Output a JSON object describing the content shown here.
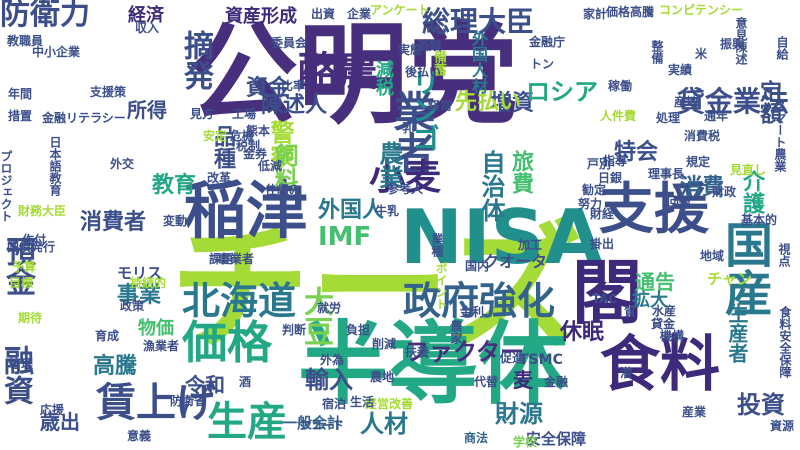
{
  "palette": {
    "dark_purple": "#3e2a7a",
    "purple": "#472f7d",
    "indigo": "#3c4f8a",
    "blue": "#33628d",
    "teal_blue": "#2a788e",
    "teal": "#21908d",
    "green_teal": "#22a884",
    "green": "#44bf70",
    "light_green": "#7ad151",
    "lime": "#a5db36",
    "yellow_green": "#c8e020"
  },
  "words": [
    {
      "text": "公明党",
      "color": "#472f7d"
    },
    {
      "text": "チーズ",
      "color": "#a5db36"
    },
    {
      "text": "半導体",
      "color": "#22a884"
    },
    {
      "text": "NISA",
      "color": "#21908d"
    },
    {
      "text": "閣",
      "color": "#3e2a7a"
    },
    {
      "text": "稲津",
      "color": "#3c4f8a"
    },
    {
      "text": "支援",
      "color": "#3c4f8a"
    },
    {
      "text": "食料",
      "color": "#3e2a7a"
    },
    {
      "text": "政府強化",
      "color": "#33628d"
    },
    {
      "text": "価格",
      "color": "#22a884"
    },
    {
      "text": "賃上げ",
      "color": "#3c4f8a"
    },
    {
      "text": "生産",
      "color": "#22a884"
    },
    {
      "text": "北海道",
      "color": "#2a788e"
    },
    {
      "text": "国産",
      "color": "#2a788e"
    },
    {
      "text": "業者",
      "color": "#3c4f8a"
    },
    {
      "text": "酪農",
      "color": "#472f7d"
    },
    {
      "text": "小麦",
      "color": "#3e2a7a"
    },
    {
      "text": "防衛力",
      "color": "#3c4f8a"
    },
    {
      "text": "総理大臣",
      "color": "#3c4f8a"
    },
    {
      "text": "摘発",
      "color": "#3c4f8a"
    },
    {
      "text": "リンゴ",
      "color": "#21908d"
    },
    {
      "text": "貸金業法",
      "color": "#3c4f8a"
    },
    {
      "text": "ファクター",
      "color": "#472f7d"
    },
    {
      "text": "IMF",
      "color": "#44bf70"
    },
    {
      "text": "大豆",
      "color": "#7ad151"
    },
    {
      "text": "輸入",
      "color": "#3c4f8a"
    },
    {
      "text": "投資",
      "color": "#3c4f8a"
    },
    {
      "text": "預金",
      "color": "#3c4f8a"
    },
    {
      "text": "融資",
      "color": "#3c4f8a"
    },
    {
      "text": "高騰",
      "color": "#2a788e"
    },
    {
      "text": "事業",
      "color": "#2a788e"
    },
    {
      "text": "消費者",
      "color": "#3c4f8a"
    },
    {
      "text": "外国人",
      "color": "#2a788e"
    },
    {
      "text": "増資",
      "color": "#3c4f8a"
    },
    {
      "text": "ロシア",
      "color": "#22a884"
    },
    {
      "text": "先払い",
      "color": "#a5db36"
    },
    {
      "text": "資金",
      "color": "#3c4f8a"
    },
    {
      "text": "減税",
      "color": "#22a884"
    },
    {
      "text": "農業",
      "color": "#2a788e"
    },
    {
      "text": "自治体",
      "color": "#2a788e"
    },
    {
      "text": "旅費",
      "color": "#44bf70"
    },
    {
      "text": "特会",
      "color": "#3c4f8a"
    },
    {
      "text": "介護",
      "color": "#22a884"
    },
    {
      "text": "消費",
      "color": "#33628d"
    },
    {
      "text": "定額",
      "color": "#3c4f8a"
    },
    {
      "text": "財源",
      "color": "#2a788e"
    },
    {
      "text": "人材",
      "color": "#2a788e"
    },
    {
      "text": "歳出",
      "color": "#3c4f8a"
    },
    {
      "text": "令和",
      "color": "#3c4f8a"
    },
    {
      "text": "教育",
      "color": "#22a884"
    },
    {
      "text": "経済",
      "color": "#3e2a7a"
    },
    {
      "text": "資産形成",
      "color": "#3e2a7a"
    },
    {
      "text": "警察",
      "color": "#a5db36"
    },
    {
      "text": "飼料",
      "color": "#7ad151"
    },
    {
      "text": "品種",
      "color": "#3c4f8a"
    },
    {
      "text": "陳述人",
      "color": "#3c4f8a"
    },
    {
      "text": "所得",
      "color": "#3c4f8a"
    },
    {
      "text": "休眠",
      "color": "#3e2a7a"
    },
    {
      "text": "通告",
      "color": "#44bf70"
    },
    {
      "text": "拡大",
      "color": "#2a788e"
    },
    {
      "text": "生産者",
      "color": "#2a788e"
    },
    {
      "text": "麦",
      "color": "#3e2a7a"
    },
    {
      "text": "一般会計",
      "color": "#33628d"
    },
    {
      "text": "安全保障",
      "color": "#3c4f8a"
    },
    {
      "text": "クオータ",
      "color": "#3c4f8a"
    },
    {
      "text": "外国人材",
      "color": "#2a788e"
    },
    {
      "text": "モリス",
      "color": "#3c4f8a"
    },
    {
      "text": "物価",
      "color": "#44bf70"
    },
    {
      "text": "TSMC",
      "color": "#3c4f8a"
    },
    {
      "text": "チャン",
      "color": "#a5db36"
    },
    {
      "text": "漁業者",
      "color": "#3c4f8a"
    },
    {
      "text": "アコード",
      "color": "#3c4f8a"
    },
    {
      "text": "商法",
      "color": "#33628d"
    },
    {
      "text": "学校",
      "color": "#7ad151"
    },
    {
      "text": "資源",
      "color": "#3c4f8a"
    },
    {
      "text": "産業",
      "color": "#3c4f8a"
    },
    {
      "text": "備蓄",
      "color": "#a5db36"
    },
    {
      "text": "見直し",
      "color": "#a5db36"
    },
    {
      "text": "宿泊",
      "color": "#3c4f8a"
    },
    {
      "text": "外為",
      "color": "#3c4f8a"
    },
    {
      "text": "扶養",
      "color": "#3c4f8a"
    },
    {
      "text": "育成",
      "color": "#3c4f8a"
    },
    {
      "text": "意義",
      "color": "#3c4f8a"
    },
    {
      "text": "消費税",
      "color": "#3c4f8a"
    },
    {
      "text": "業種",
      "color": "#3c4f8a"
    },
    {
      "text": "人件費",
      "color": "#a5db36"
    },
    {
      "text": "出資",
      "color": "#3c4f8a"
    },
    {
      "text": "企業",
      "color": "#3c4f8a"
    },
    {
      "text": "アンケート",
      "color": "#a5db36"
    },
    {
      "text": "酒類",
      "color": "#3c4f8a"
    },
    {
      "text": "家計",
      "color": "#3c4f8a"
    },
    {
      "text": "価格高騰",
      "color": "#3c4f8a"
    },
    {
      "text": "コンピテンシー",
      "color": "#a5db36"
    },
    {
      "text": "意見陳述",
      "color": "#3c4f8a"
    },
    {
      "text": "整備",
      "color": "#3c4f8a"
    },
    {
      "text": "自給",
      "color": "#3c4f8a"
    },
    {
      "text": "委員会",
      "color": "#3c4f8a"
    },
    {
      "text": "中小企業",
      "color": "#3c4f8a"
    },
    {
      "text": "金融リテラシー",
      "color": "#3c4f8a"
    },
    {
      "text": "支援策",
      "color": "#3c4f8a"
    },
    {
      "text": "工場",
      "color": "#3c4f8a"
    },
    {
      "text": "比率",
      "color": "#3c4f8a"
    },
    {
      "text": "見方",
      "color": "#3c4f8a"
    },
    {
      "text": "実態",
      "color": "#3c4f8a"
    },
    {
      "text": "金融庁",
      "color": "#3c4f8a"
    },
    {
      "text": "後払い",
      "color": "#3c4f8a"
    },
    {
      "text": "危機",
      "color": "#3c4f8a"
    },
    {
      "text": "安定",
      "color": "#a5db36"
    },
    {
      "text": "年間",
      "color": "#3c4f8a"
    },
    {
      "text": "措置",
      "color": "#3c4f8a"
    },
    {
      "text": "教職員",
      "color": "#3c4f8a"
    },
    {
      "text": "日本語教育",
      "color": "#3c4f8a"
    },
    {
      "text": "外交",
      "color": "#3c4f8a"
    },
    {
      "text": "改革",
      "color": "#3c4f8a"
    },
    {
      "text": "国債発行",
      "color": "#3c4f8a"
    },
    {
      "text": "財務大臣",
      "color": "#a5db36"
    },
    {
      "text": "金券",
      "color": "#3c4f8a"
    },
    {
      "text": "仕組み",
      "color": "#3c4f8a"
    },
    {
      "text": "牛乳",
      "color": "#3c4f8a"
    },
    {
      "text": "参考人",
      "color": "#3c4f8a"
    },
    {
      "text": "変動",
      "color": "#3c4f8a"
    },
    {
      "text": "予算",
      "color": "#a5db36"
    },
    {
      "text": "目標",
      "color": "#a5db36"
    },
    {
      "text": "事業者",
      "color": "#3c4f8a"
    },
    {
      "text": "課題",
      "color": "#3c4f8a"
    },
    {
      "text": "加工",
      "color": "#3c4f8a"
    },
    {
      "text": "国内",
      "color": "#3c4f8a"
    },
    {
      "text": "金利",
      "color": "#3c4f8a"
    },
    {
      "text": "地域",
      "color": "#3c4f8a"
    },
    {
      "text": "財政",
      "color": "#3c4f8a"
    },
    {
      "text": "農家",
      "color": "#3c4f8a"
    },
    {
      "text": "政策",
      "color": "#3c4f8a"
    },
    {
      "text": "経営改善",
      "color": "#a5db36"
    },
    {
      "text": "農地",
      "color": "#3c4f8a"
    },
    {
      "text": "防衛省",
      "color": "#3c4f8a"
    },
    {
      "text": "就労",
      "color": "#3c4f8a"
    },
    {
      "text": "持続的",
      "color": "#a5db36"
    },
    {
      "text": "管理",
      "color": "#3c4f8a"
    },
    {
      "text": "期待",
      "color": "#a5db36"
    },
    {
      "text": "酒",
      "color": "#3c4f8a"
    },
    {
      "text": "潜",
      "color": "#3c4f8a"
    },
    {
      "text": "質",
      "color": "#3c4f8a"
    },
    {
      "text": "TAC",
      "color": "#3c4f8a"
    },
    {
      "text": "水産",
      "color": "#3c4f8a"
    },
    {
      "text": "貸金",
      "color": "#3c4f8a"
    },
    {
      "text": "機構",
      "color": "#3c4f8a"
    },
    {
      "text": "規定",
      "color": "#3c4f8a"
    },
    {
      "text": "戸別",
      "color": "#3c4f8a"
    },
    {
      "text": "指導",
      "color": "#3c4f8a"
    },
    {
      "text": "勧定",
      "color": "#3c4f8a"
    },
    {
      "text": "努力",
      "color": "#3c4f8a"
    },
    {
      "text": "財経",
      "color": "#3c4f8a"
    },
    {
      "text": "掛出",
      "color": "#3c4f8a"
    },
    {
      "text": "熊本",
      "color": "#3c4f8a"
    },
    {
      "text": "低減",
      "color": "#3c4f8a"
    },
    {
      "text": "経常",
      "color": "#3c4f8a"
    },
    {
      "text": "乳",
      "color": "#3c4f8a"
    },
    {
      "text": "収入",
      "color": "#3c4f8a"
    },
    {
      "text": "トン",
      "color": "#3c4f8a"
    },
    {
      "text": "基本的",
      "color": "#3c4f8a"
    },
    {
      "text": "視点",
      "color": "#3c4f8a"
    },
    {
      "text": "米",
      "color": "#3c4f8a"
    },
    {
      "text": "理事長",
      "color": "#3c4f8a"
    },
    {
      "text": "回復",
      "color": "#3c4f8a"
    },
    {
      "text": "応援",
      "color": "#3c4f8a"
    },
    {
      "text": "作付",
      "color": "#3c4f8a"
    },
    {
      "text": "プロジェクト",
      "color": "#3c4f8a"
    },
    {
      "text": "税制",
      "color": "#3c4f8a"
    },
    {
      "text": "スマート農業",
      "color": "#3c4f8a"
    },
    {
      "text": "食料安全保障",
      "color": "#3c4f8a"
    },
    {
      "text": "ポイント",
      "color": "#a5db36"
    },
    {
      "text": "実績",
      "color": "#3c4f8a"
    },
    {
      "text": "稼働",
      "color": "#3c4f8a"
    },
    {
      "text": "通年",
      "color": "#3c4f8a"
    },
    {
      "text": "産地",
      "color": "#3c4f8a"
    },
    {
      "text": "日銀",
      "color": "#3c4f8a"
    },
    {
      "text": "促進",
      "color": "#3c4f8a"
    },
    {
      "text": "代替",
      "color": "#3c4f8a"
    },
    {
      "text": "処理",
      "color": "#3c4f8a"
    },
    {
      "text": "負担",
      "color": "#3c4f8a"
    },
    {
      "text": "判断",
      "color": "#3c4f8a"
    },
    {
      "text": "削減",
      "color": "#3c4f8a"
    },
    {
      "text": "生活",
      "color": "#3c4f8a"
    },
    {
      "text": "金融",
      "color": "#3c4f8a"
    },
    {
      "text": "振興",
      "color": "#3c4f8a"
    }
  ]
}
